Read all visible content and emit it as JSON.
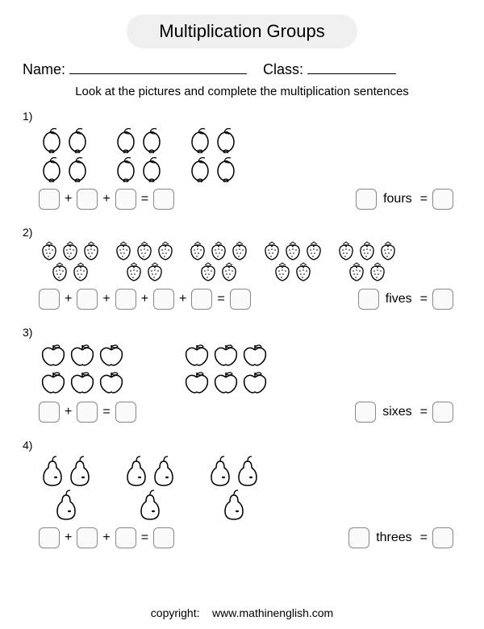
{
  "title": "Multiplication Groups",
  "name_label": "Name:",
  "class_label": "Class:",
  "instructions": "Look at the pictures and complete the multiplication sentences",
  "name_blank_width": 220,
  "class_blank_width": 110,
  "colors": {
    "background": "#ffffff",
    "text": "#000000",
    "title_bg": "#f0f0f0",
    "box_border": "#888888",
    "box_bg": "#fafafa",
    "stroke": "#000000"
  },
  "box_style": {
    "width": 26,
    "height": 26,
    "border_radius": 6,
    "border_width": 1.5
  },
  "problems": [
    {
      "number": "1)",
      "fruit": "lemon",
      "groups": 3,
      "per_group": 4,
      "group_layout": {
        "cols": 2,
        "item_w": 32,
        "item_h": 36
      },
      "add_boxes": 3,
      "word": "fours",
      "gap": 28
    },
    {
      "number": "2)",
      "fruit": "strawberry",
      "groups": 5,
      "per_group": 5,
      "group_layout": {
        "cols": 3,
        "item_w": 26,
        "item_h": 26,
        "stagger": true
      },
      "add_boxes": 5,
      "word": "fives",
      "gap": 14
    },
    {
      "number": "3)",
      "fruit": "apple",
      "groups": 2,
      "per_group": 6,
      "group_layout": {
        "cols": 3,
        "item_w": 36,
        "item_h": 34
      },
      "add_boxes": 2,
      "word": "sixes",
      "gap": 70
    },
    {
      "number": "4)",
      "fruit": "pear",
      "groups": 3,
      "per_group": 3,
      "group_layout": {
        "cols": 2,
        "item_w": 34,
        "item_h": 42,
        "stagger": true
      },
      "add_boxes": 3,
      "word": "threes",
      "gap": 36
    }
  ],
  "footer": {
    "copyright_label": "copyright:",
    "site": "www.mathinenglish.com"
  }
}
